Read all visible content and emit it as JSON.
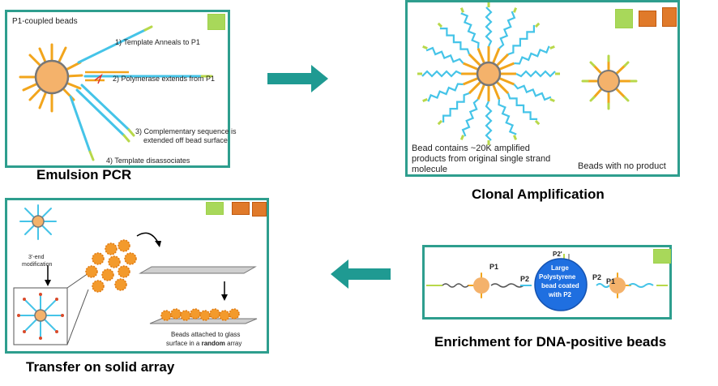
{
  "panels": {
    "emulsion": {
      "title": "P1-coupled beads",
      "step1": "1) Template Anneals to P1",
      "step2": "2) Polymerase extends from  P1",
      "step3a": "3) Complementary sequence is",
      "step3b": "extended off bead surface",
      "step4": "4) Template disassociates",
      "caption": "Emulsion PCR"
    },
    "clonal": {
      "text_line1": "Bead contains ~20K amplified",
      "text_line2": "products from original single strand",
      "text_line3": "molecule",
      "no_product": "Beads with no product",
      "caption": "Clonal Amplification"
    },
    "transfer": {
      "mod_line1": "3’-end",
      "mod_line2": "modification",
      "attached_line1": "Beads attached to glass",
      "attached_line2_pre": "surface in a ",
      "attached_line2_bold": "random",
      "attached_line2_post": " array",
      "caption": "Transfer on solid array"
    },
    "enrichment": {
      "p1_left": "P1",
      "p2_left": "P2",
      "p2_prime": "P2'",
      "bead_line1": "Large",
      "bead_line2": "Polystyrene",
      "bead_line3": "bead coated",
      "bead_line4": "with P2",
      "p2_right": "P2",
      "p1_right": "P1",
      "caption": "Enrichment for DNA-positive beads"
    }
  },
  "colors": {
    "frame": "#2e9e8e",
    "arrow": "#1f9a92",
    "bead": "#f4b26b",
    "bead_outline": "#7a7a7a",
    "strand_orange": "#f2a51c",
    "strand_blue": "#45c4e8",
    "strand_green": "#b8d84a",
    "blue_bead": "#1f6fe0"
  }
}
